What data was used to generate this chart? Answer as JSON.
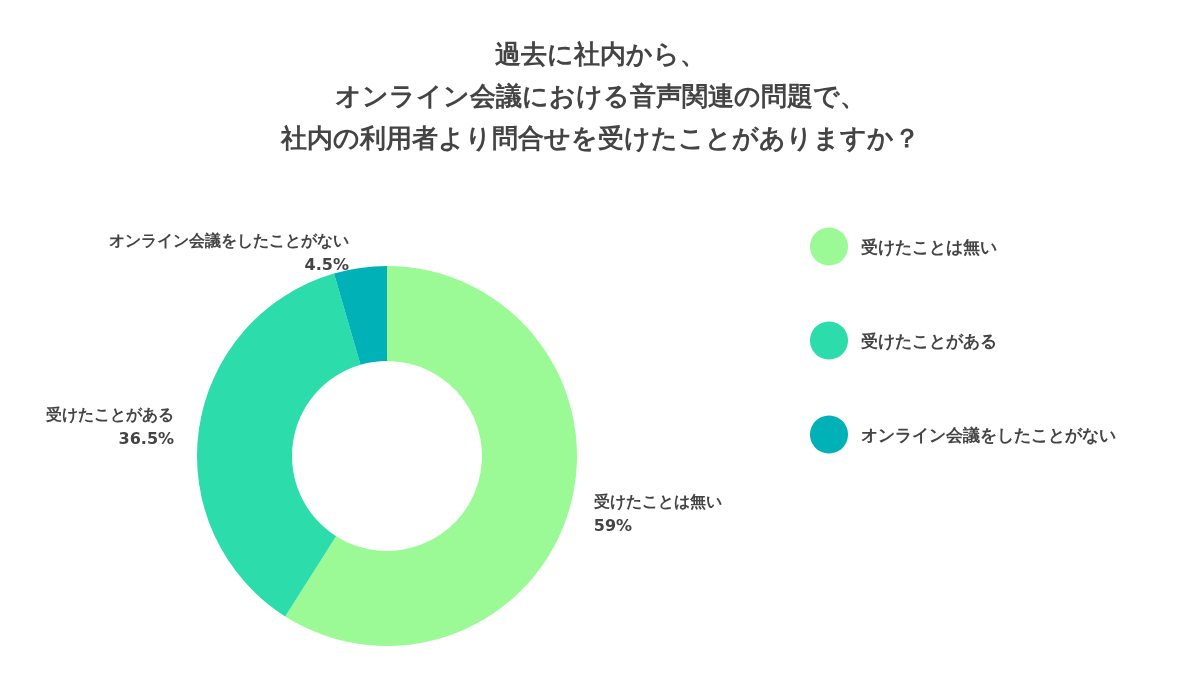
{
  "chart_data": {
    "type": "donut",
    "title": "過去に社内から、オンライン会議における音声関連の問題で、社内の利用者より問合せを受けたことがありますか？",
    "categories": [
      "受けたことは無い",
      "受けたことがある",
      "オンライン会議をしたことがない"
    ],
    "values": [
      59,
      36.5,
      4.5
    ],
    "colors": [
      "#9cfa96",
      "#2ddcab",
      "#00b2b8"
    ],
    "value_labels": [
      "59%",
      "36.5%",
      "4.5%"
    ],
    "legend": "right"
  }
}
